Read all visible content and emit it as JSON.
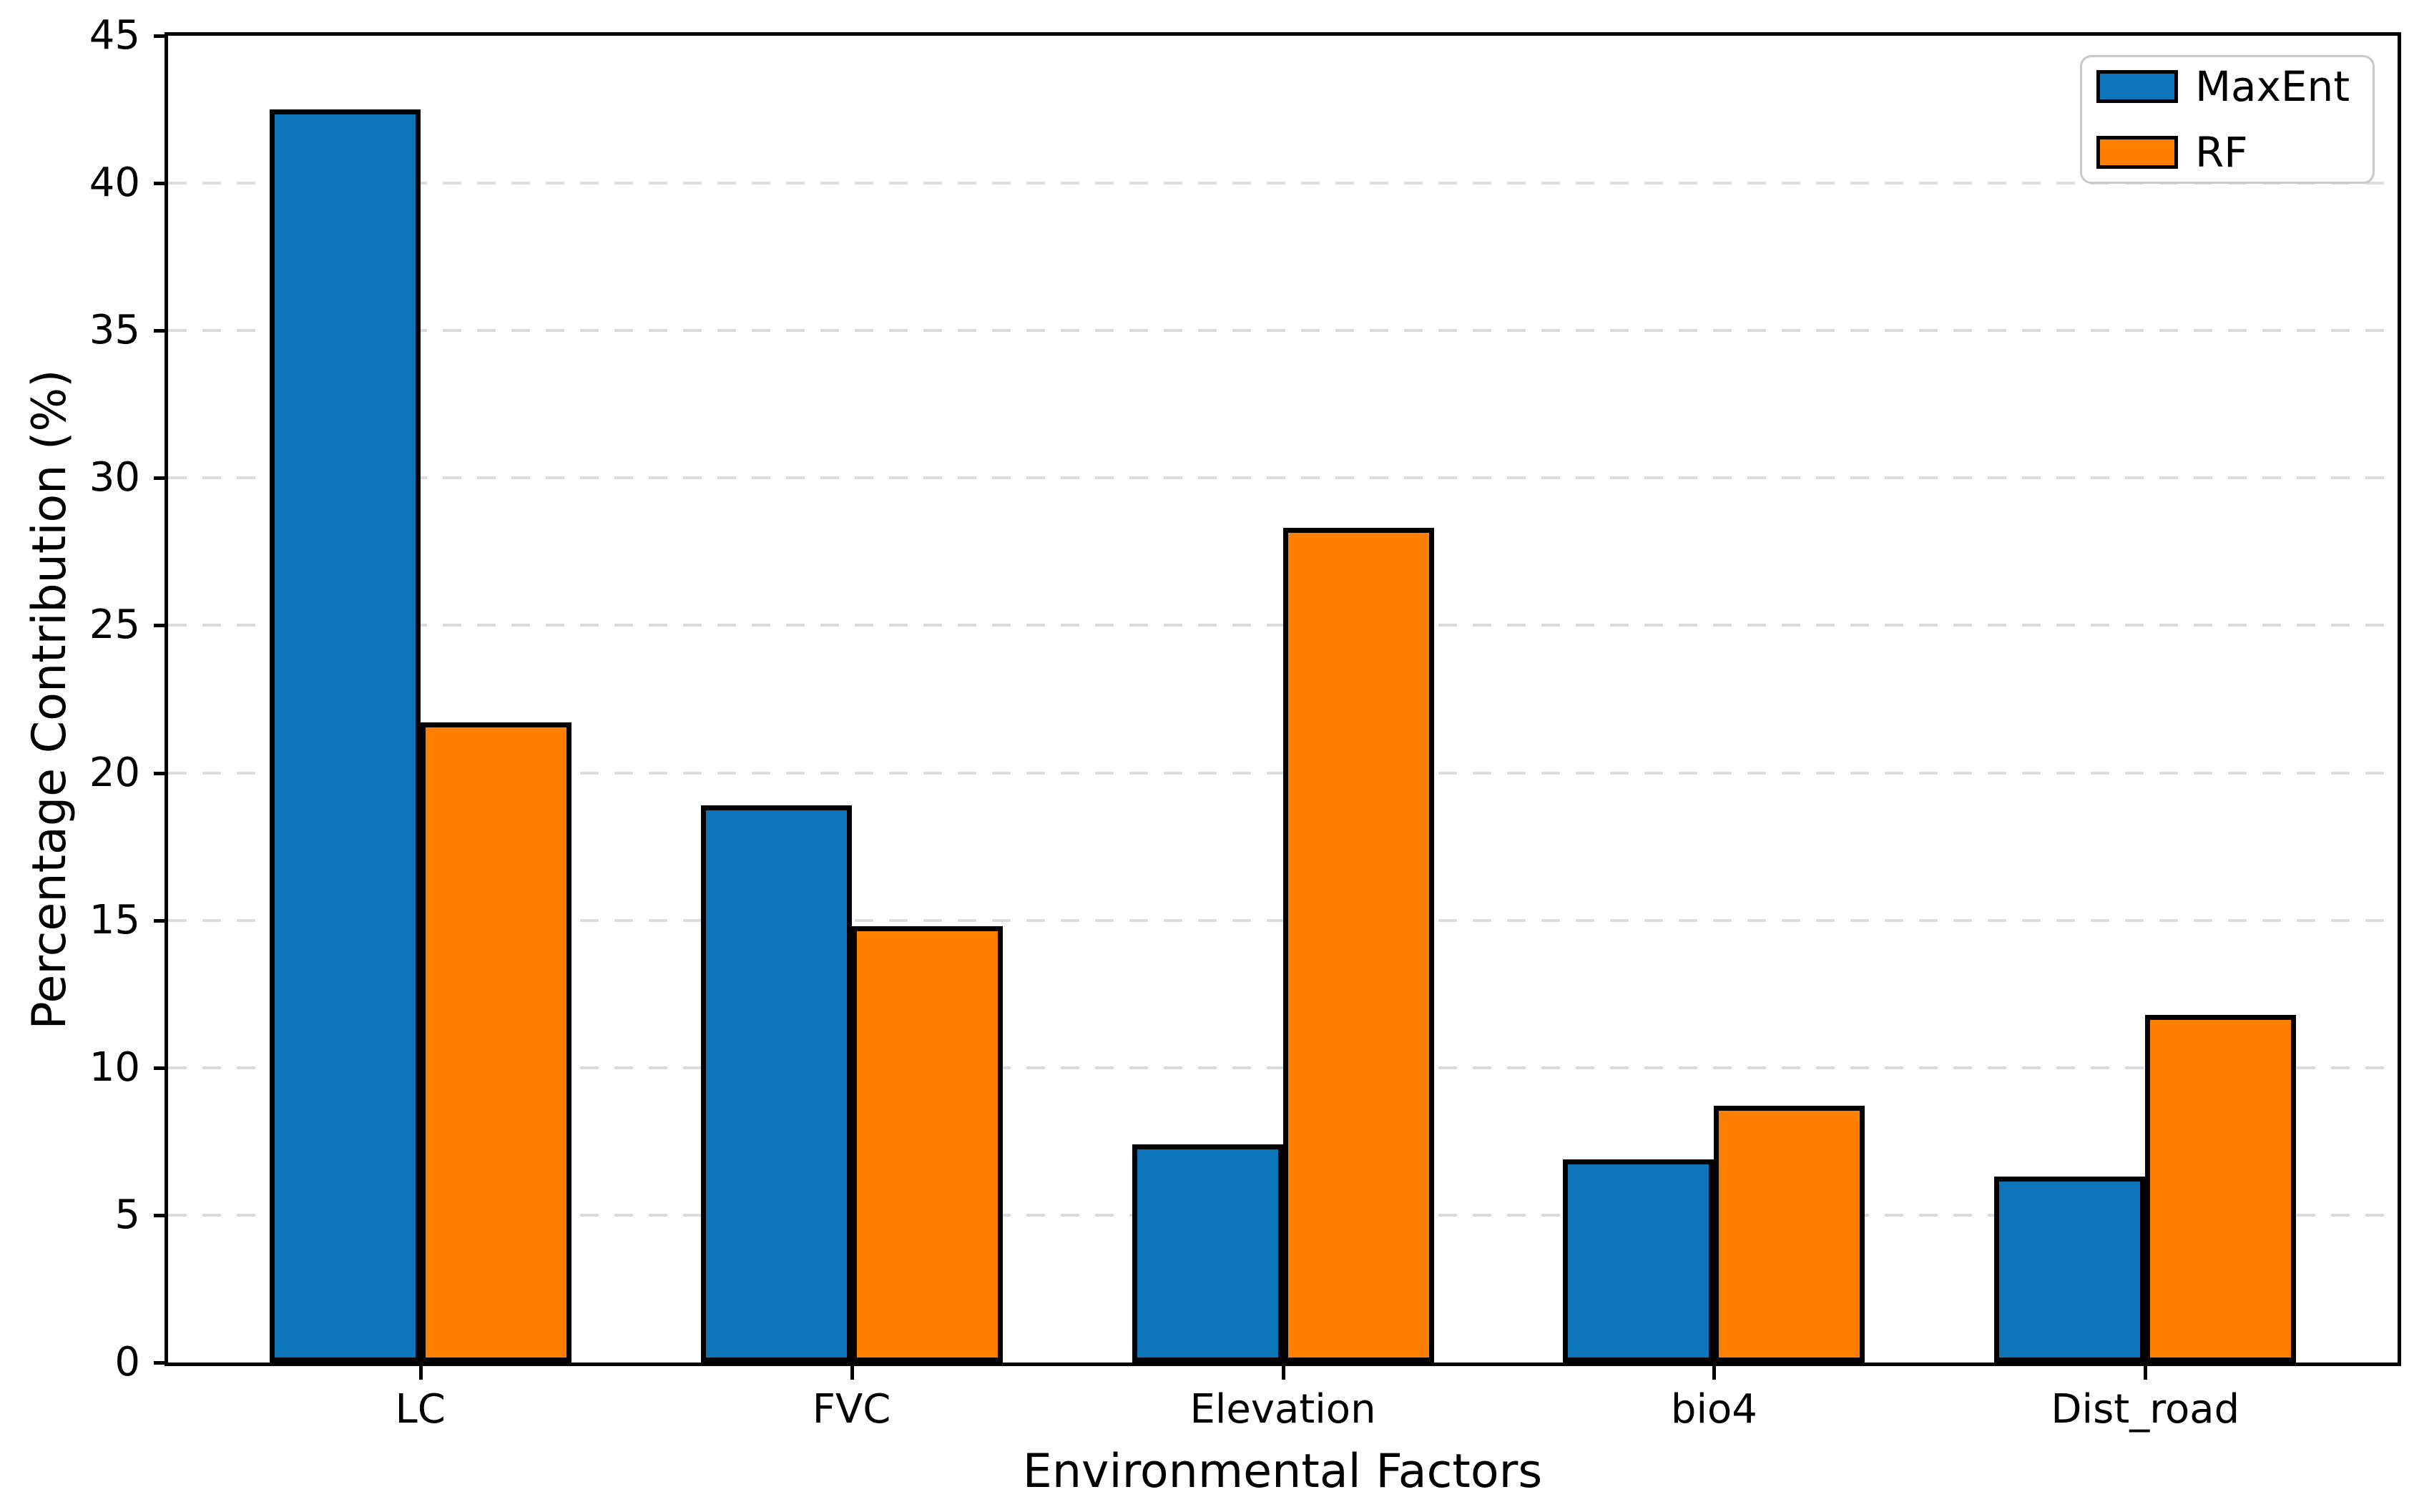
{
  "chart_data": {
    "type": "bar",
    "categories": [
      "LC",
      "FVC",
      "Elevation",
      "bio4",
      "Dist_road"
    ],
    "series": [
      {
        "name": "MaxEnt",
        "color": "#0d76ba",
        "values": [
          42.5,
          18.9,
          7.4,
          6.9,
          6.3
        ]
      },
      {
        "name": "RF",
        "color": "#ff7f00",
        "values": [
          21.7,
          14.8,
          28.3,
          8.7,
          11.8
        ]
      }
    ],
    "xlabel": "Environmental Factors",
    "ylabel": "Percentage Contribution (%)",
    "ylim": [
      0,
      45
    ],
    "yticks": [
      0,
      5,
      10,
      15,
      20,
      25,
      30,
      35,
      40,
      45
    ],
    "grid": "horizontal dashed",
    "legend_position": "upper right",
    "bar_edge_color": "#000000",
    "background_color": "#ffffff"
  }
}
